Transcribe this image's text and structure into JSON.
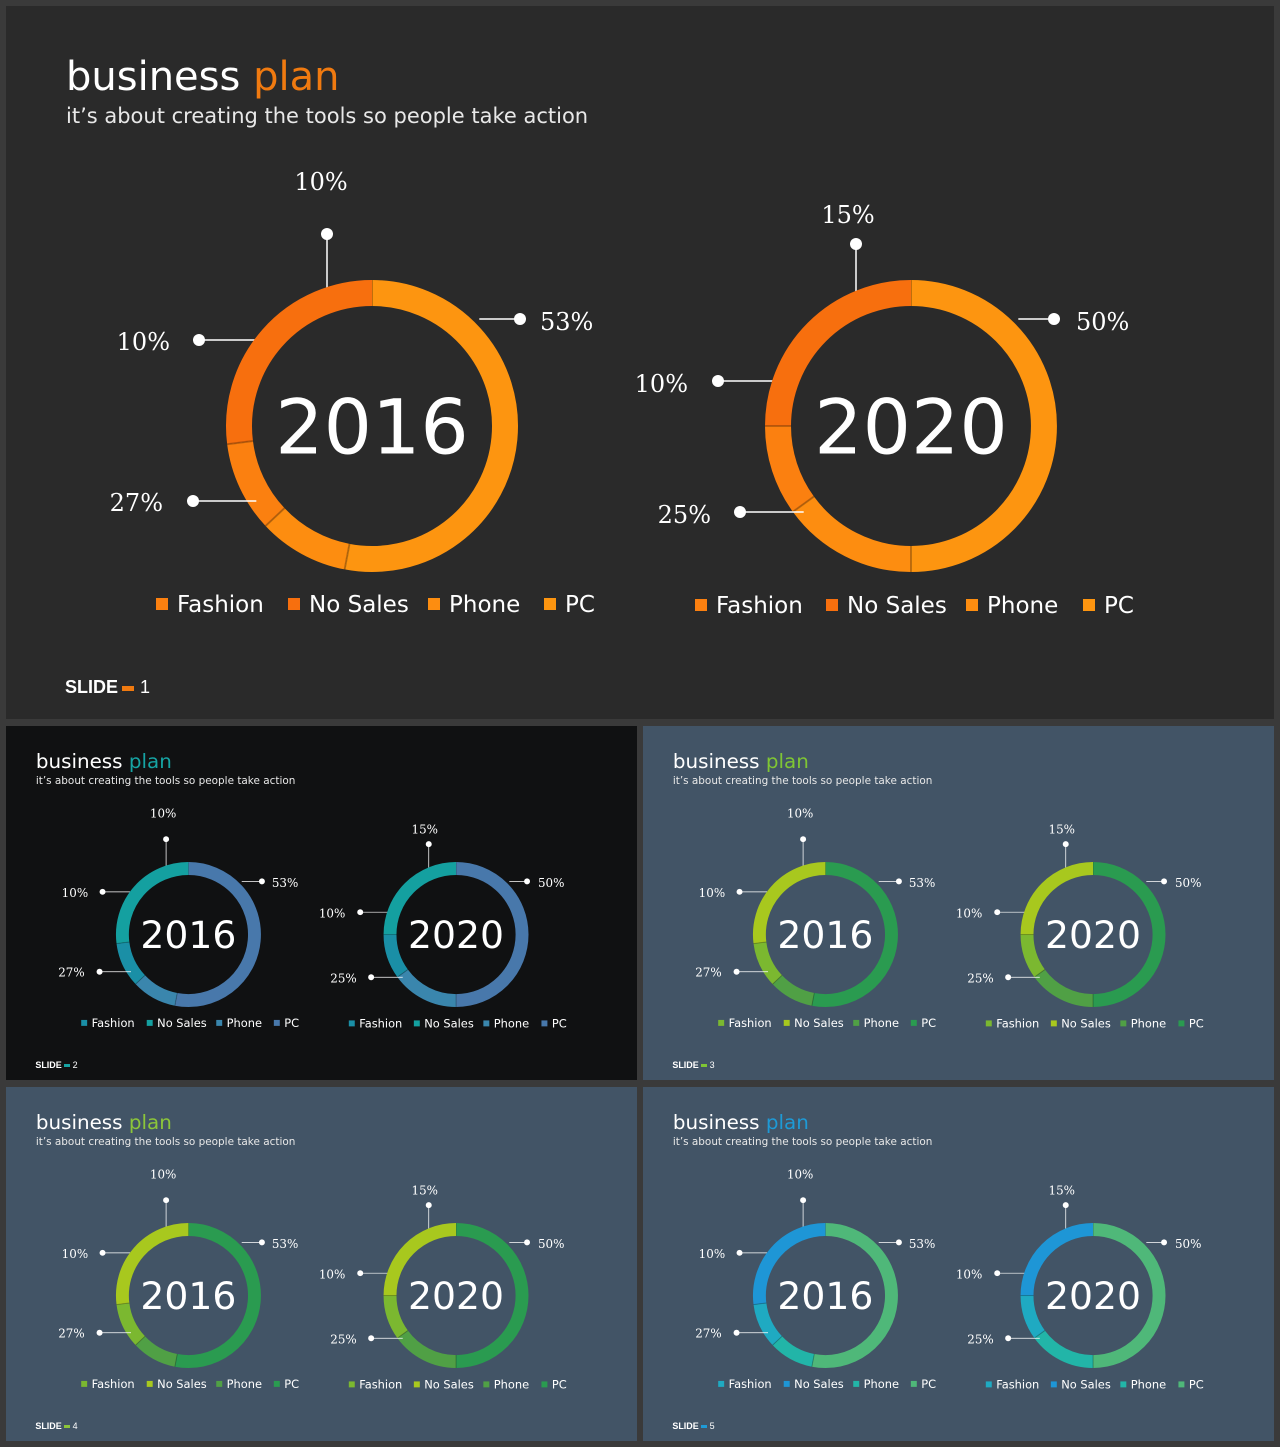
{
  "title_word1": "business",
  "title_word2": "plan",
  "subtitle": "it’s about creating the tools so people take action",
  "slide_label": "SLIDE",
  "legend": [
    "Fashion",
    "No Sales",
    "Phone",
    "PC"
  ],
  "charts": [
    {
      "year": "2016",
      "slices": [
        {
          "category": "PC",
          "value": 53,
          "label": "53%"
        },
        {
          "category": "Phone",
          "value": 10,
          "label": "10%"
        },
        {
          "category": "Fashion",
          "value": 10,
          "label": "10%"
        },
        {
          "category": "No Sales",
          "value": 27,
          "label": "27%"
        }
      ]
    },
    {
      "year": "2020",
      "slices": [
        {
          "category": "PC",
          "value": 50,
          "label": "50%"
        },
        {
          "category": "Phone",
          "value": 15,
          "label": "15%"
        },
        {
          "category": "Fashion",
          "value": 10,
          "label": "10%"
        },
        {
          "category": "No Sales",
          "value": 25,
          "label": "25%"
        }
      ]
    }
  ],
  "slides": [
    {
      "number": "1",
      "background": "#2a2a2a",
      "accent": "#f07a10",
      "colors": {
        "PC": "#fd9510",
        "Phone": "#fd8d10",
        "Fashion": "#fb8010",
        "No Sales": "#f76f0e"
      }
    },
    {
      "number": "2",
      "background": "#101112",
      "accent": "#16a3a3",
      "colors": {
        "PC": "#4878ab",
        "Phone": "#3a86ad",
        "Fashion": "#1a8fa6",
        "No Sales": "#14a0a0"
      }
    },
    {
      "number": "3",
      "background": "#425466",
      "accent": "#7fc634",
      "colors": {
        "PC": "#2a9b50",
        "Phone": "#50a045",
        "Fashion": "#7bb830",
        "No Sales": "#a8c81e"
      }
    },
    {
      "number": "4",
      "background": "#425466",
      "accent": "#8cc53a",
      "colors": {
        "PC": "#2a9b50",
        "Phone": "#50a045",
        "Fashion": "#7bb830",
        "No Sales": "#a8c81e"
      }
    },
    {
      "number": "5",
      "background": "#425466",
      "accent": "#1e9ad6",
      "colors": {
        "PC": "#4fb879",
        "Phone": "#22b5a8",
        "Fashion": "#1faac2",
        "No Sales": "#1e96d6"
      }
    }
  ]
}
